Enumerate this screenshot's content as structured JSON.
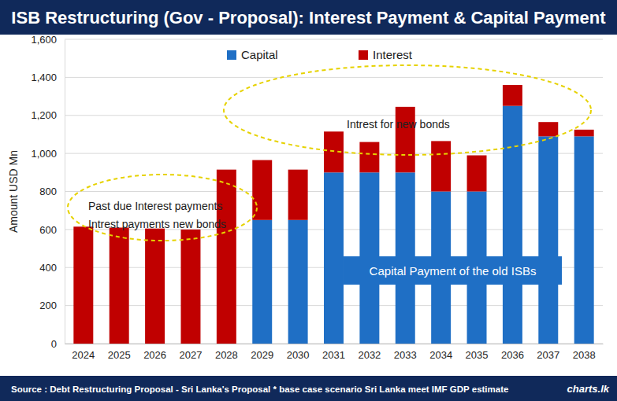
{
  "chart_data": {
    "type": "bar",
    "title": "ISB Restructuring (Gov - Proposal): Interest Payment & Capital Payment",
    "stacked": true,
    "grid": true,
    "legend": "top",
    "categories": [
      "2024",
      "2025",
      "2026",
      "2027",
      "2028",
      "2029",
      "2030",
      "2031",
      "2032",
      "2033",
      "2034",
      "2035",
      "2036",
      "2037",
      "2038"
    ],
    "series": [
      {
        "name": "Capital",
        "color": "#1f6fc5",
        "values": [
          0,
          0,
          0,
          0,
          0,
          650,
          650,
          900,
          900,
          900,
          800,
          800,
          1250,
          1090,
          1090
        ]
      },
      {
        "name": "Interest",
        "color": "#c00000",
        "values": [
          615,
          610,
          605,
          600,
          915,
          315,
          265,
          215,
          160,
          345,
          265,
          190,
          110,
          75,
          35
        ]
      }
    ],
    "ylabel": "Amount USD Mn",
    "ylim": [
      0,
      1600
    ],
    "yticks": [
      0,
      200,
      400,
      600,
      800,
      {
        "value": 1000,
        "label": "1,000"
      },
      {
        "value": 1200,
        "label": "1,200"
      },
      {
        "value": 1400,
        "label": "1,400"
      },
      {
        "value": 1600,
        "label": "1,600"
      }
    ],
    "annotations": [
      "Past due Interest payments",
      "Intrest payments new bonds",
      "Intrest for new bonds",
      "Capital Payment of the old ISBs"
    ],
    "source": "Source : Debt Restructuring Proposal - Sri Lanka's Proposal * base case scenario Sri Lanka meet IMF GDP estimate",
    "logo": "charts.lk"
  }
}
